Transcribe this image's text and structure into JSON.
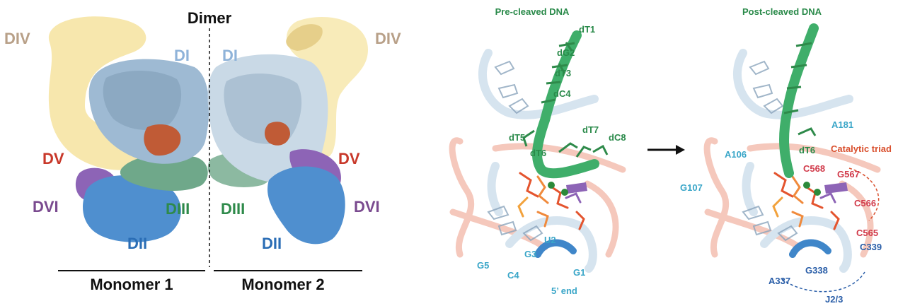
{
  "colors": {
    "d1": "#9ebad3",
    "d1_dark": "#7d9ab4",
    "d2": "#4f8fcf",
    "d3": "#6fa88a",
    "d4": "#f7e7ad",
    "d5": "#c05b36",
    "d6": "#8d64b6",
    "dna": "#3fae6a",
    "rna": "#d6e4ef",
    "protein": "#f2b6a6",
    "label_d1": "#8fb3d9",
    "label_d2": "#2a6db5",
    "label_d3": "#2e8a4a",
    "label_d4": "#b8a088",
    "label_d5": "#c8382a",
    "label_d6": "#7a4a8f",
    "label_dna": "#2a8a4a",
    "label_cyan": "#3aa6c8",
    "label_red": "#d13a4a",
    "label_blue": "#2a5ea8",
    "label_triad": "#d9502e"
  },
  "left_panel": {
    "title": "Dimer",
    "monomer1": "Monomer 1",
    "monomer2": "Monomer 2",
    "m1_domains": {
      "d1": "DI",
      "d2": "DII",
      "d3": "DIII",
      "d4": "DIV",
      "d5": "DV",
      "d6": "DVI"
    },
    "m2_domains": {
      "d1": "DI",
      "d2": "DII",
      "d3": "DIII",
      "d4": "DIV",
      "d5": "DV",
      "d6": "DVI"
    }
  },
  "middle_panel": {
    "title": "Pre-cleaved DNA",
    "dna_labels": [
      "dT1",
      "dG2",
      "dT3",
      "dC4",
      "dT5",
      "dT6",
      "dT7",
      "dC8"
    ],
    "rna_labels": [
      "U2",
      "G3",
      "G5",
      "C4",
      "G1"
    ],
    "end_label": "5’ end"
  },
  "right_panel": {
    "title": "Post-cleaved DNA",
    "dna_label": "dT6",
    "catalytic_triad": "Catalytic triad",
    "cyan_labels": [
      "A181",
      "A106",
      "G107"
    ],
    "red_labels": [
      "C568",
      "G567",
      "C566",
      "C565"
    ],
    "blue_labels": [
      "C339",
      "G338",
      "A337",
      "J2/3"
    ]
  }
}
